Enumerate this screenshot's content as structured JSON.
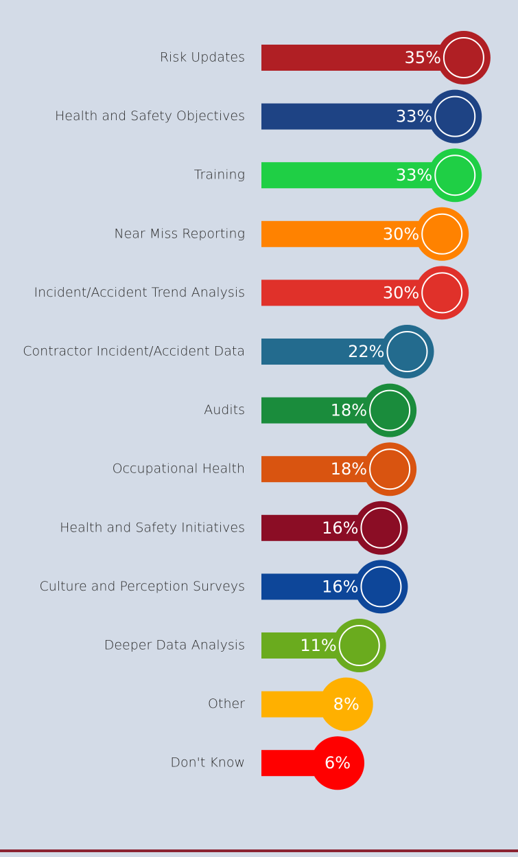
{
  "chart_data": {
    "type": "bar",
    "categories": [
      "Risk Updates",
      "Health and Safety Objectives",
      "Training",
      "Near Miss Reporting",
      "Incident/Accident Trend Analysis",
      "Contractor Incident/Accident Data",
      "Audits",
      "Occupational Health",
      "Health and Safety Initiatives",
      "Culture and Perception Surveys",
      "Deeper Data Analysis",
      "Other",
      "Don't Know"
    ],
    "values": [
      35,
      33,
      33,
      30,
      30,
      22,
      18,
      18,
      16,
      16,
      11,
      8,
      6
    ],
    "value_labels": [
      "35%",
      "33%",
      "33%",
      "30%",
      "30%",
      "22%",
      "18%",
      "18%",
      "16%",
      "16%",
      "11%",
      "8%",
      "6%"
    ],
    "colors": [
      "#b01f24",
      "#1e4384",
      "#1fcf45",
      "#ff8200",
      "#e0312a",
      "#236b8e",
      "#1a8c3c",
      "#d95410",
      "#8b0d25",
      "#0d4699",
      "#6aab1e",
      "#ffb000",
      "#ff0000"
    ]
  }
}
